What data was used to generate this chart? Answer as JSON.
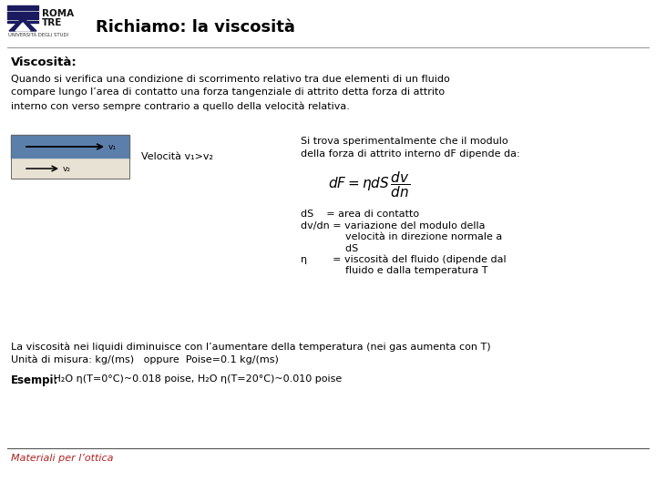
{
  "title": "Richiamo: la viscosità",
  "subtitle": "Viscosità:",
  "body_text1": "Quando si verifica una condizione di scorrimento relativo tra due elementi di un fluido\ncompare lungo l’area di contatto una forza tangenziale di attrito detta forza di attrito\ninterno con verso sempre contrario a quello della velocità relativa.",
  "velocita_label": "Velocità v₁>v₂",
  "right_text1": "Si trova sperimentalmente che il modulo\ndella forza di attrito interno dF dipende da:",
  "formula": "$dF = \\eta dS\\, \\dfrac{dv}{dn}$",
  "legend_ds": "dS    = area di contatto",
  "legend_dvdn1": "dv/dn = variazione del modulo della",
  "legend_dvdn2": "              velocità in direzione normale a",
  "legend_dvdn3": "              dS",
  "legend_eta1": "η        = viscosità del fluido (dipende dal",
  "legend_eta2": "              fluido e dalla temperatura T",
  "bottom_text1": "La viscosità nei liquidi diminuisce con l’aumentare della temperatura (nei gas aumenta con T)",
  "bottom_text2": "Unità di misura: kg/(ms)   oppure  Poise=0.1 kg/(ms)",
  "esempi_label": "Esempi:",
  "esempi_text": " H₂O η(T=0°C)~0.018 poise, H₂O η(T=20°C)~0.010 poise",
  "footer": "Materiali per l’ottica",
  "bg_color": "#ffffff",
  "text_color": "#000000",
  "title_color": "#000000",
  "footer_color": "#b22222",
  "box_blue": "#5b7faa",
  "box_light": "#e8e2d4",
  "title_fontsize": 13,
  "body_fontsize": 8.0,
  "subtitle_fontsize": 9.5,
  "formula_fontsize": 11
}
